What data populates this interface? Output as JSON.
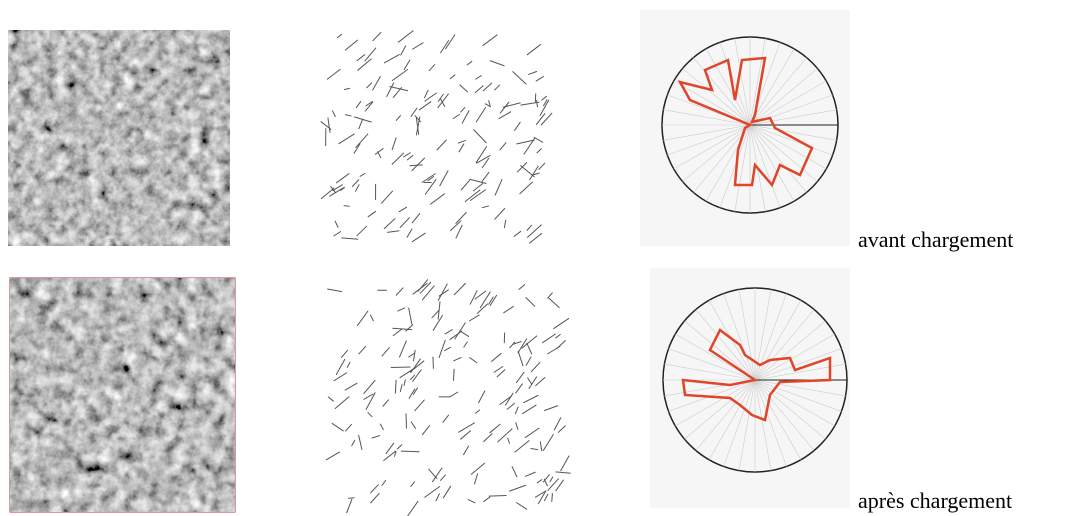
{
  "rows": [
    {
      "caption": "avant chargement"
    },
    {
      "caption": "après chargement"
    }
  ]
}
